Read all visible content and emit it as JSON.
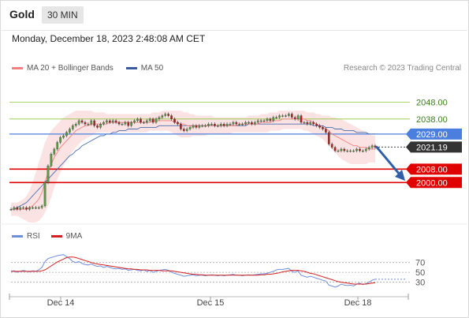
{
  "header": {
    "title": "Gold",
    "timeframe": "30 MIN"
  },
  "datetime": "Monday, December 18, 2023 2:48:08 AM CET",
  "legend": {
    "items": [
      {
        "label": "MA 20 + Bollinger Bands",
        "color": "#f08080"
      },
      {
        "label": "MA 50",
        "color": "#3a5a9c"
      }
    ],
    "credit": "Research © 2023 Trading Central"
  },
  "colors": {
    "resistance": "#8dc63f",
    "support": "#e00000",
    "pivot": "#4a7fe0",
    "price": "#333333",
    "up_candle": "#5a9e44",
    "down_candle": "#b22222",
    "band_fill": "#fbdede",
    "ma20": "#f08080",
    "ma50": "#4a6fb0",
    "arrow": "#2f5fa8",
    "rsi": "#6f8fdc",
    "rsi_ma": "#d42020"
  },
  "chart_data": [
    {
      "type": "candlestick",
      "title": "Gold",
      "timeframe": "30 MIN",
      "x_ticks": [
        "Dec 14",
        "Dec 15",
        "Dec 18"
      ],
      "ylim": [
        1977,
        2062
      ],
      "levels": [
        {
          "value": 2048.0,
          "label": "2048.00",
          "kind": "resistance"
        },
        {
          "value": 2038.0,
          "label": "2038.00",
          "kind": "resistance"
        },
        {
          "value": 2029.0,
          "label": "2029.00",
          "kind": "pivot"
        },
        {
          "value": 2021.19,
          "label": "2021.19",
          "kind": "price"
        },
        {
          "value": 2008.0,
          "label": "2008.00",
          "kind": "support"
        },
        {
          "value": 2000.0,
          "label": "2000.00",
          "kind": "support"
        }
      ],
      "closes": [
        1984,
        1985,
        1984,
        1985,
        1985,
        1984,
        1985,
        1985,
        1985,
        1985,
        1986,
        2000,
        2010,
        2017,
        2020,
        2024,
        2027,
        2028,
        2030,
        2032,
        2034,
        2035,
        2037,
        2036,
        2035,
        2035,
        2037,
        2034,
        2033,
        2035,
        2036,
        2037,
        2036,
        2037,
        2036,
        2035,
        2035,
        2036,
        2034,
        2036,
        2037,
        2038,
        2036,
        2036,
        2037,
        2038,
        2036,
        2038,
        2039,
        2040,
        2041,
        2040,
        2038,
        2036,
        2035,
        2032,
        2031,
        2032,
        2033,
        2034,
        2033,
        2034,
        2034,
        2034,
        2035,
        2035,
        2034,
        2034,
        2035,
        2034,
        2035,
        2035,
        2036,
        2035,
        2035,
        2035,
        2036,
        2036,
        2035,
        2036,
        2037,
        2037,
        2037,
        2038,
        2037,
        2039,
        2039,
        2040,
        2040,
        2040,
        2041,
        2039,
        2038,
        2040,
        2036,
        2036,
        2035,
        2036,
        2035,
        2034,
        2033,
        2032,
        2030,
        2023,
        2021,
        2019,
        2019,
        2020,
        2019,
        2019,
        2019,
        2019,
        2020,
        2019,
        2019,
        2020,
        2021,
        2022,
        2021
      ],
      "ma20": [
        1984,
        1984,
        1984,
        1984,
        1984,
        1984,
        1985,
        1986,
        1988,
        1990,
        1994,
        2000,
        2006,
        2011,
        2015,
        2018,
        2021,
        2023,
        2025,
        2027,
        2029,
        2031,
        2032,
        2033,
        2034,
        2034,
        2035,
        2035,
        2035,
        2035,
        2035,
        2035,
        2036,
        2036,
        2036,
        2036,
        2036,
        2036,
        2036,
        2036,
        2036,
        2036,
        2036,
        2036,
        2036,
        2036,
        2037,
        2037,
        2037,
        2037,
        2037,
        2037,
        2037,
        2036,
        2036,
        2035,
        2035,
        2034,
        2034,
        2034,
        2034,
        2034,
        2034,
        2034,
        2034,
        2034,
        2034,
        2034,
        2034,
        2034,
        2034,
        2034,
        2034,
        2034,
        2035,
        2035,
        2035,
        2035,
        2035,
        2035,
        2035,
        2036,
        2036,
        2036,
        2036,
        2037,
        2037,
        2037,
        2038,
        2038,
        2038,
        2038,
        2038,
        2038,
        2038,
        2038,
        2037,
        2037,
        2036,
        2035,
        2034,
        2033,
        2032,
        2031,
        2029,
        2028,
        2027,
        2026,
        2025,
        2024,
        2023,
        2022,
        2022,
        2021,
        2021,
        2021,
        2020,
        2020,
        2020
      ],
      "bb_upper": [
        1988,
        1988,
        1988,
        1989,
        1990,
        1992,
        1995,
        2000,
        2006,
        2012,
        2018,
        2024,
        2028,
        2031,
        2033,
        2035,
        2037,
        2039,
        2040,
        2041,
        2042,
        2043,
        2043,
        2043,
        2043,
        2043,
        2043,
        2042,
        2042,
        2042,
        2042,
        2041,
        2041,
        2041,
        2041,
        2041,
        2041,
        2041,
        2041,
        2041,
        2041,
        2041,
        2041,
        2041,
        2041,
        2041,
        2042,
        2042,
        2042,
        2043,
        2043,
        2043,
        2043,
        2043,
        2043,
        2043,
        2042,
        2042,
        2041,
        2041,
        2040,
        2040,
        2040,
        2040,
        2040,
        2040,
        2039,
        2039,
        2039,
        2039,
        2039,
        2039,
        2039,
        2039,
        2039,
        2039,
        2039,
        2040,
        2040,
        2040,
        2040,
        2041,
        2041,
        2041,
        2042,
        2042,
        2042,
        2043,
        2043,
        2043,
        2043,
        2043,
        2043,
        2043,
        2043,
        2043,
        2042,
        2042,
        2042,
        2041,
        2041,
        2040,
        2040,
        2040,
        2039,
        2039,
        2038,
        2038,
        2037,
        2036,
        2035,
        2034,
        2033,
        2032,
        2031,
        2030,
        2029,
        2028,
        2028
      ],
      "bb_lower": [
        1980,
        1980,
        1980,
        1979,
        1978,
        1977,
        1976,
        1976,
        1976,
        1977,
        1979,
        1982,
        1986,
        1991,
        1997,
        2002,
        2006,
        2010,
        2013,
        2016,
        2019,
        2021,
        2023,
        2025,
        2026,
        2027,
        2028,
        2029,
        2030,
        2030,
        2030,
        2030,
        2030,
        2030,
        2030,
        2030,
        2030,
        2030,
        2030,
        2030,
        2030,
        2030,
        2030,
        2030,
        2030,
        2031,
        2031,
        2031,
        2031,
        2031,
        2031,
        2031,
        2030,
        2029,
        2028,
        2027,
        2027,
        2027,
        2027,
        2028,
        2028,
        2028,
        2028,
        2028,
        2029,
        2029,
        2029,
        2029,
        2029,
        2029,
        2029,
        2029,
        2030,
        2030,
        2030,
        2030,
        2030,
        2030,
        2030,
        2030,
        2030,
        2030,
        2030,
        2030,
        2031,
        2031,
        2031,
        2031,
        2032,
        2032,
        2032,
        2032,
        2032,
        2032,
        2032,
        2031,
        2031,
        2030,
        2029,
        2028,
        2027,
        2026,
        2024,
        2022,
        2020,
        2018,
        2016,
        2014,
        2013,
        2012,
        2011,
        2011,
        2011,
        2011,
        2011,
        2011,
        2012,
        2012,
        2012
      ],
      "ma50": [
        1984,
        1984,
        1985,
        1986,
        1987,
        1988,
        1990,
        1992,
        1994,
        1996,
        1998,
        2000,
        2002,
        2004,
        2006,
        2008,
        2010,
        2012,
        2014,
        2016,
        2017,
        2019,
        2020,
        2022,
        2023,
        2024,
        2025,
        2026,
        2027,
        2028,
        2028,
        2029,
        2029,
        2030,
        2030,
        2031,
        2031,
        2031,
        2032,
        2032,
        2032,
        2032,
        2033,
        2033,
        2033,
        2033,
        2033,
        2033,
        2034,
        2034,
        2034,
        2034,
        2034,
        2034,
        2034,
        2034,
        2034,
        2034,
        2034,
        2034,
        2034,
        2034,
        2034,
        2034,
        2034,
        2034,
        2034,
        2034,
        2034,
        2034,
        2034,
        2034,
        2034,
        2034,
        2034,
        2034,
        2034,
        2035,
        2035,
        2035,
        2035,
        2035,
        2035,
        2035,
        2035,
        2035,
        2035,
        2035,
        2035,
        2035,
        2035,
        2035,
        2035,
        2035,
        2035,
        2035,
        2035,
        2035,
        2034,
        2034,
        2034,
        2034,
        2033,
        2033,
        2033,
        2032,
        2032,
        2032,
        2031,
        2031,
        2031,
        2031,
        2030,
        2030,
        2030,
        2030,
        2029,
        2029,
        2029
      ],
      "forecast_arrow": {
        "from": 2021.19,
        "to": 2002
      }
    },
    {
      "type": "line",
      "title": "RSI",
      "legend": [
        "RSI",
        "9MA"
      ],
      "y_ticks": [
        70,
        50,
        30
      ],
      "ylim": [
        10,
        100
      ],
      "series": [
        {
          "name": "RSI",
          "values": [
            52,
            53,
            50,
            52,
            54,
            52,
            51,
            53,
            52,
            55,
            60,
            72,
            78,
            80,
            82,
            84,
            85,
            86,
            82,
            78,
            72,
            70,
            72,
            68,
            66,
            65,
            67,
            64,
            62,
            63,
            60,
            62,
            60,
            58,
            57,
            58,
            56,
            57,
            54,
            55,
            56,
            54,
            53,
            55,
            52,
            54,
            50,
            52,
            54,
            55,
            56,
            54,
            50,
            48,
            46,
            44,
            42,
            43,
            44,
            45,
            43,
            44,
            44,
            43,
            44,
            45,
            44,
            43,
            44,
            43,
            44,
            45,
            46,
            44,
            44,
            43,
            44,
            45,
            44,
            45,
            46,
            47,
            47,
            48,
            50,
            52,
            55,
            56,
            56,
            57,
            58,
            52,
            50,
            53,
            44,
            42,
            40,
            42,
            40,
            38,
            36,
            34,
            32,
            24,
            22,
            20,
            22,
            26,
            24,
            23,
            24,
            22,
            26,
            28,
            25,
            27,
            30,
            34,
            36
          ]
        },
        {
          "name": "9MA",
          "values": [
            52,
            52,
            52,
            52,
            52,
            52,
            52,
            52,
            52,
            52,
            53,
            55,
            59,
            63,
            67,
            71,
            74,
            77,
            80,
            81,
            81,
            80,
            78,
            76,
            74,
            72,
            70,
            68,
            67,
            66,
            65,
            64,
            63,
            62,
            61,
            60,
            59,
            58,
            57,
            57,
            56,
            56,
            55,
            55,
            55,
            54,
            54,
            54,
            54,
            53,
            53,
            53,
            53,
            52,
            51,
            50,
            49,
            48,
            47,
            46,
            46,
            45,
            45,
            44,
            44,
            44,
            44,
            44,
            44,
            44,
            44,
            44,
            44,
            44,
            44,
            44,
            44,
            44,
            44,
            44,
            44,
            45,
            45,
            46,
            46,
            47,
            48,
            49,
            51,
            52,
            53,
            54,
            54,
            54,
            53,
            52,
            50,
            48,
            47,
            45,
            43,
            41,
            39,
            37,
            35,
            33,
            31,
            30,
            29,
            28,
            27,
            26,
            26,
            26,
            26,
            26,
            27,
            28,
            29
          ]
        }
      ]
    }
  ]
}
